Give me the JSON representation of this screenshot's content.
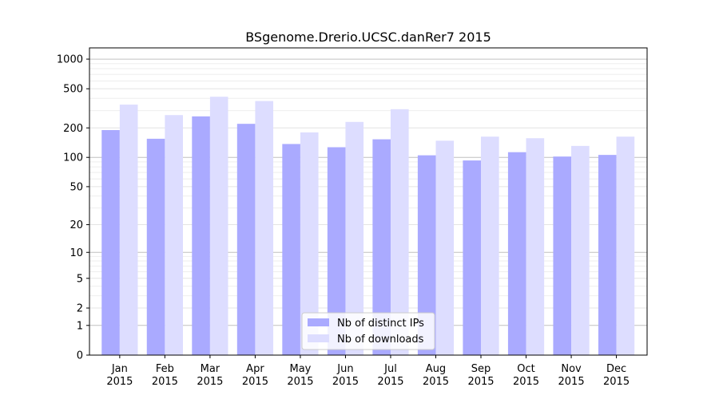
{
  "chart_data": {
    "type": "bar",
    "title": "BSgenome.Drerio.UCSC.danRer7 2015",
    "xlabel": "",
    "ylabel": "",
    "yscale": "log(1+y)",
    "ylim": [
      0,
      1300
    ],
    "yticks": [
      0,
      1,
      2,
      5,
      10,
      20,
      50,
      100,
      200,
      500,
      1000
    ],
    "ytick_labels": [
      "0",
      "1",
      "2",
      "5",
      "10",
      "20",
      "50",
      "100",
      "200",
      "500",
      "1000"
    ],
    "grid": true,
    "legend_position": "bottom-center",
    "categories": [
      [
        "Jan",
        "2015"
      ],
      [
        "Feb",
        "2015"
      ],
      [
        "Mar",
        "2015"
      ],
      [
        "Apr",
        "2015"
      ],
      [
        "May",
        "2015"
      ],
      [
        "Jun",
        "2015"
      ],
      [
        "Jul",
        "2015"
      ],
      [
        "Aug",
        "2015"
      ],
      [
        "Sep",
        "2015"
      ],
      [
        "Oct",
        "2015"
      ],
      [
        "Nov",
        "2015"
      ],
      [
        "Dec",
        "2015"
      ]
    ],
    "series": [
      {
        "name": "Nb of distinct IPs",
        "color": "#aaaaff",
        "values": [
          190,
          155,
          262,
          220,
          137,
          127,
          153,
          105,
          93,
          113,
          102,
          106
        ]
      },
      {
        "name": "Nb of downloads",
        "color": "#ddddff",
        "values": [
          345,
          270,
          415,
          375,
          180,
          230,
          310,
          148,
          163,
          157,
          131,
          163
        ]
      }
    ]
  }
}
